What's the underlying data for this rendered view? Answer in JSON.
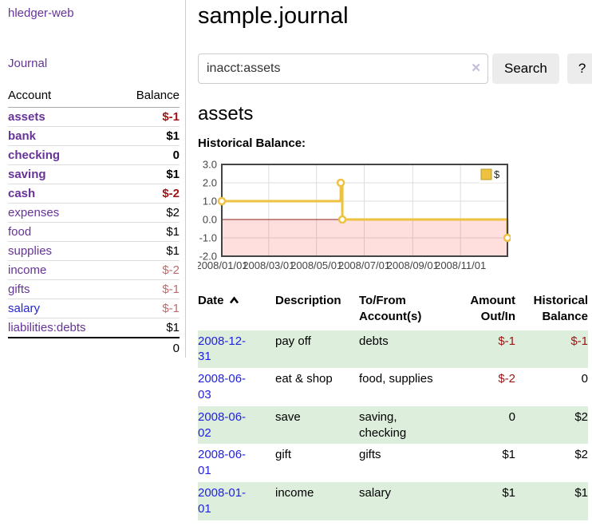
{
  "colors": {
    "purple_link": "#663399",
    "blue_link": "#2222dd",
    "negative_strong": "#a01515",
    "negative_weak": "#bb6d6d",
    "row_stripe_green": "#ddeedd",
    "chart_series": "#edc240",
    "chart_negative_fill": "rgba(255,0,0,0.13)",
    "chart_zero_line": "#8b2020",
    "chart_border": "#444444",
    "chart_grid": "#dddddd"
  },
  "sidebar": {
    "app_title": "hledger-web",
    "journal_link": "Journal",
    "table": {
      "headers": [
        "Account",
        "Balance"
      ],
      "rows": [
        {
          "account": "assets",
          "indent": 1,
          "bold": true,
          "balance": "$-1",
          "link_color": "purple"
        },
        {
          "account": "bank",
          "indent": 2,
          "bold": true,
          "balance": "$1",
          "link_color": "purple"
        },
        {
          "account": "checking",
          "indent": 3,
          "bold": true,
          "balance": "0",
          "link_color": "purple"
        },
        {
          "account": "saving",
          "indent": 3,
          "bold": true,
          "balance": "$1",
          "link_color": "purple"
        },
        {
          "account": "cash",
          "indent": 2,
          "bold": true,
          "balance": "$-2",
          "link_color": "purple"
        },
        {
          "account": "expenses",
          "indent": 1,
          "bold": false,
          "balance": "$2",
          "link_color": "purple"
        },
        {
          "account": "food",
          "indent": 2,
          "bold": false,
          "balance": "$1",
          "link_color": "purple"
        },
        {
          "account": "supplies",
          "indent": 2,
          "bold": false,
          "balance": "$1",
          "link_color": "purple"
        },
        {
          "account": "income",
          "indent": 1,
          "bold": false,
          "balance": "$-2",
          "link_color": "purple"
        },
        {
          "account": "gifts",
          "indent": 2,
          "bold": false,
          "balance": "$-1",
          "link_color": "purple"
        },
        {
          "account": "salary",
          "indent": 2,
          "bold": false,
          "balance": "$-1",
          "link_color": "blue"
        },
        {
          "account": "liabilities:debts",
          "indent": 1,
          "bold": false,
          "balance": "$1",
          "link_color": "purple"
        }
      ],
      "total": "0"
    }
  },
  "search": {
    "value": "inacct:assets",
    "clear_icon": "✕",
    "search_button": "Search",
    "help_button": "?"
  },
  "main": {
    "title": "sample.journal",
    "account_heading": "assets",
    "chart_label": "Historical Balance:"
  },
  "chart_data": {
    "type": "line",
    "step": true,
    "title": "Historical Balance",
    "series": [
      {
        "name": "$",
        "color": "#edc240",
        "points": [
          [
            "2008/01/01",
            1
          ],
          [
            "2008/06/01",
            2
          ],
          [
            "2008/06/03",
            0
          ],
          [
            "2008/12/31",
            -1
          ]
        ]
      }
    ],
    "xdomain": [
      "2008/01/01",
      "2008/12/31"
    ],
    "ylim": [
      -2,
      3
    ],
    "yticks": [
      3,
      2,
      1,
      0,
      -1,
      -2
    ],
    "ytick_labels": [
      "3.0",
      "2.0",
      "1.0",
      "0.0",
      "-1.0",
      "-2.0"
    ],
    "xticks": [
      "2008/01/01",
      "2008/03/01",
      "2008/05/01",
      "2008/07/01",
      "2008/09/01",
      "2008/11/01"
    ],
    "grid": true,
    "legend_position": "top-right",
    "legend_label": "$",
    "negative_region_shaded": true
  },
  "register": {
    "headers": [
      [
        "Date"
      ],
      [
        "Description"
      ],
      [
        "To/From",
        "Account(s)"
      ],
      [
        "Amount",
        "Out/In"
      ],
      [
        "Historical",
        "Balance"
      ]
    ],
    "sort_column": "Date",
    "sort_direction": "ascending",
    "rows": [
      {
        "date": "2008-12-31",
        "description": "pay off",
        "accounts": "debts",
        "amount": "$-1",
        "balance": "$-1"
      },
      {
        "date": "2008-06-03",
        "description": "eat & shop",
        "accounts": "food, supplies",
        "amount": "$-2",
        "balance": "0"
      },
      {
        "date": "2008-06-02",
        "description": "save",
        "accounts": "saving, checking",
        "amount": "0",
        "balance": "$2"
      },
      {
        "date": "2008-06-01",
        "description": "gift",
        "accounts": "gifts",
        "amount": "$1",
        "balance": "$2"
      },
      {
        "date": "2008-01-01",
        "description": "income",
        "accounts": "salary",
        "amount": "$1",
        "balance": "$1"
      }
    ]
  }
}
